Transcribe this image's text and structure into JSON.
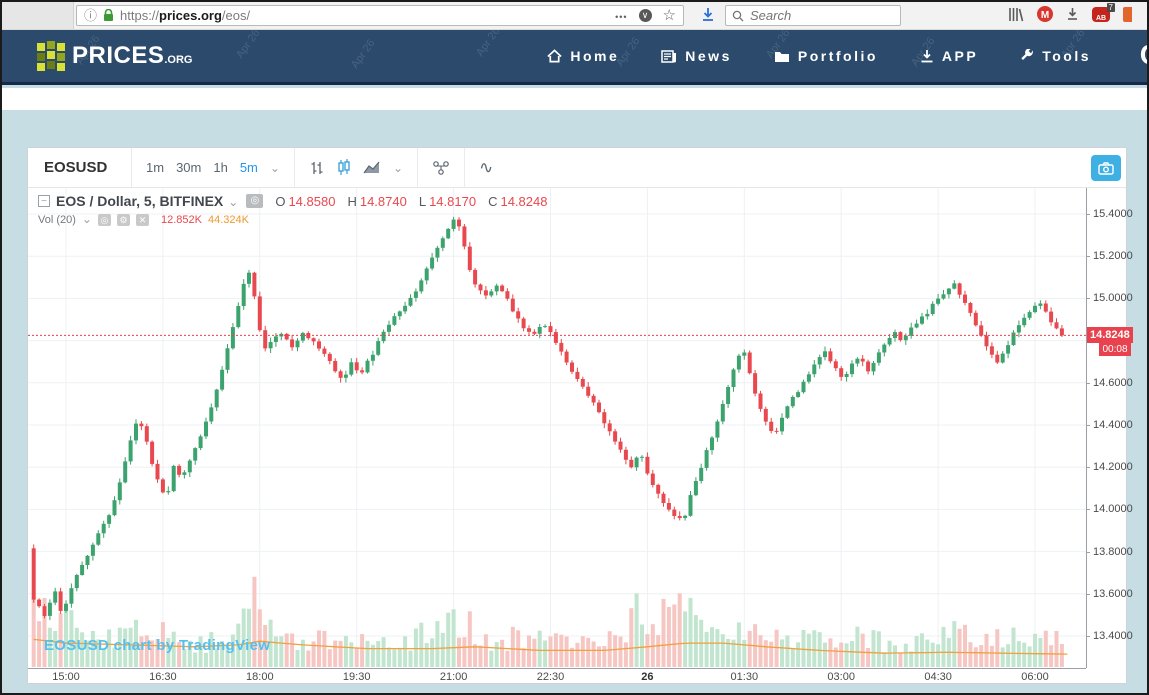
{
  "browser": {
    "url": {
      "scheme": "https://",
      "host": "prices.org",
      "path": "/eos/"
    },
    "search_placeholder": "Search",
    "adblock_badge": "7"
  },
  "navbar": {
    "brand": "PRICES",
    "brand_tld": ".ORG",
    "items": [
      {
        "label": "Home"
      },
      {
        "label": "News"
      },
      {
        "label": "Portfolio"
      },
      {
        "label": "APP"
      },
      {
        "label": "Tools"
      }
    ],
    "partial_right": "C",
    "watermark": "Apr 26"
  },
  "chart_toolbar": {
    "symbol": "EOSUSD",
    "intervals": [
      "1m",
      "30m",
      "1h",
      "5m"
    ],
    "active_interval": "5m"
  },
  "legend": {
    "title": "EOS / Dollar, 5, BITFINEX",
    "ohlc": [
      {
        "k": "O",
        "v": "14.8580"
      },
      {
        "k": "H",
        "v": "14.8740"
      },
      {
        "k": "L",
        "v": "14.8170"
      },
      {
        "k": "C",
        "v": "14.8248"
      }
    ],
    "vol_label": "Vol (20)",
    "vol_value": "12.852K",
    "vol_ma_value": "44.324K"
  },
  "watermark_text": "EOSUSD chart by TradingView",
  "price_axis": {
    "ticks": [
      "15.4000",
      "15.2000",
      "15.0000",
      "14.6000",
      "14.4000",
      "14.2000",
      "14.0000",
      "13.8000",
      "13.6000",
      "13.4000"
    ],
    "last_price": "14.8248",
    "last_price_value": 14.8248,
    "countdown": "00:08"
  },
  "time_axis": {
    "ticks": [
      {
        "label": "15:00"
      },
      {
        "label": "16:30"
      },
      {
        "label": "18:00"
      },
      {
        "label": "19:30"
      },
      {
        "label": "21:00"
      },
      {
        "label": "22:30"
      },
      {
        "label": "26",
        "bold": true
      },
      {
        "label": "01:30"
      },
      {
        "label": "03:00"
      },
      {
        "label": "04:30"
      },
      {
        "label": "06:00"
      }
    ]
  },
  "chart_data": {
    "type": "candlestick",
    "symbol": "EOSUSD",
    "exchange": "BITFINEX",
    "interval_minutes": 5,
    "title": "EOS / Dollar, 5, BITFINEX",
    "last_candle": {
      "open": 14.858,
      "high": 14.874,
      "low": 14.817,
      "close": 14.8248
    },
    "price_range": [
      13.4,
      15.4
    ],
    "session_high": 15.39,
    "session_low": 13.46,
    "grid": true,
    "price_path": [
      [
        -30,
        13.82
      ],
      [
        -25,
        13.58
      ],
      [
        -15,
        13.5
      ],
      [
        -5,
        13.62
      ],
      [
        0,
        13.52
      ],
      [
        5,
        13.56
      ],
      [
        15,
        13.68
      ],
      [
        25,
        13.78
      ],
      [
        35,
        13.88
      ],
      [
        45,
        13.98
      ],
      [
        55,
        14.12
      ],
      [
        65,
        14.32
      ],
      [
        72,
        14.44
      ],
      [
        78,
        14.36
      ],
      [
        85,
        14.22
      ],
      [
        92,
        14.1
      ],
      [
        98,
        14.05
      ],
      [
        105,
        14.2
      ],
      [
        112,
        14.15
      ],
      [
        120,
        14.24
      ],
      [
        130,
        14.34
      ],
      [
        140,
        14.48
      ],
      [
        150,
        14.66
      ],
      [
        158,
        14.82
      ],
      [
        165,
        14.96
      ],
      [
        172,
        15.1
      ],
      [
        176,
        15.13
      ],
      [
        182,
        14.96
      ],
      [
        188,
        14.75
      ],
      [
        195,
        14.8
      ],
      [
        205,
        14.83
      ],
      [
        215,
        14.77
      ],
      [
        225,
        14.84
      ],
      [
        235,
        14.8
      ],
      [
        245,
        14.73
      ],
      [
        255,
        14.66
      ],
      [
        262,
        14.6
      ],
      [
        270,
        14.7
      ],
      [
        278,
        14.64
      ],
      [
        288,
        14.72
      ],
      [
        298,
        14.82
      ],
      [
        308,
        14.9
      ],
      [
        318,
        14.96
      ],
      [
        328,
        15.02
      ],
      [
        338,
        15.12
      ],
      [
        348,
        15.22
      ],
      [
        358,
        15.32
      ],
      [
        365,
        15.37
      ],
      [
        372,
        15.32
      ],
      [
        378,
        15.16
      ],
      [
        385,
        15.06
      ],
      [
        395,
        15.02
      ],
      [
        405,
        15.06
      ],
      [
        412,
        15.02
      ],
      [
        420,
        14.94
      ],
      [
        430,
        14.86
      ],
      [
        440,
        14.84
      ],
      [
        448,
        14.87
      ],
      [
        456,
        14.83
      ],
      [
        464,
        14.76
      ],
      [
        474,
        14.66
      ],
      [
        484,
        14.58
      ],
      [
        494,
        14.52
      ],
      [
        504,
        14.42
      ],
      [
        514,
        14.34
      ],
      [
        522,
        14.26
      ],
      [
        530,
        14.2
      ],
      [
        538,
        14.28
      ],
      [
        546,
        14.15
      ],
      [
        554,
        14.08
      ],
      [
        562,
        14.02
      ],
      [
        570,
        13.97
      ],
      [
        578,
        13.94
      ],
      [
        585,
        14.06
      ],
      [
        594,
        14.18
      ],
      [
        603,
        14.32
      ],
      [
        612,
        14.45
      ],
      [
        620,
        14.58
      ],
      [
        628,
        14.7
      ],
      [
        634,
        14.76
      ],
      [
        640,
        14.64
      ],
      [
        648,
        14.5
      ],
      [
        656,
        14.4
      ],
      [
        664,
        14.36
      ],
      [
        672,
        14.46
      ],
      [
        682,
        14.54
      ],
      [
        692,
        14.62
      ],
      [
        702,
        14.7
      ],
      [
        710,
        14.75
      ],
      [
        718,
        14.68
      ],
      [
        726,
        14.62
      ],
      [
        734,
        14.68
      ],
      [
        742,
        14.72
      ],
      [
        750,
        14.65
      ],
      [
        758,
        14.72
      ],
      [
        766,
        14.78
      ],
      [
        774,
        14.84
      ],
      [
        782,
        14.8
      ],
      [
        790,
        14.86
      ],
      [
        798,
        14.9
      ],
      [
        806,
        14.94
      ],
      [
        815,
        15.0
      ],
      [
        824,
        15.04
      ],
      [
        830,
        15.07
      ],
      [
        838,
        15.0
      ],
      [
        846,
        14.92
      ],
      [
        854,
        14.84
      ],
      [
        862,
        14.76
      ],
      [
        870,
        14.7
      ],
      [
        878,
        14.76
      ],
      [
        886,
        14.84
      ],
      [
        894,
        14.9
      ],
      [
        902,
        14.95
      ],
      [
        910,
        14.98
      ],
      [
        916,
        14.92
      ],
      [
        921,
        14.87
      ],
      [
        925,
        14.858
      ],
      [
        930,
        14.8248
      ]
    ],
    "volume_path": [
      [
        -30,
        0.95
      ],
      [
        -20,
        0.6
      ],
      [
        -10,
        0.45
      ],
      [
        0,
        0.5
      ],
      [
        10,
        0.42
      ],
      [
        20,
        0.38
      ],
      [
        30,
        0.3
      ],
      [
        45,
        0.28
      ],
      [
        60,
        0.4
      ],
      [
        75,
        0.45
      ],
      [
        90,
        0.38
      ],
      [
        105,
        0.25
      ],
      [
        120,
        0.22
      ],
      [
        135,
        0.28
      ],
      [
        150,
        0.4
      ],
      [
        162,
        0.55
      ],
      [
        172,
        0.95
      ],
      [
        180,
        0.7
      ],
      [
        190,
        0.45
      ],
      [
        200,
        0.32
      ],
      [
        215,
        0.28
      ],
      [
        230,
        0.32
      ],
      [
        245,
        0.28
      ],
      [
        260,
        0.32
      ],
      [
        275,
        0.25
      ],
      [
        290,
        0.22
      ],
      [
        305,
        0.28
      ],
      [
        320,
        0.3
      ],
      [
        335,
        0.35
      ],
      [
        350,
        0.42
      ],
      [
        365,
        0.48
      ],
      [
        378,
        0.4
      ],
      [
        392,
        0.3
      ],
      [
        406,
        0.28
      ],
      [
        420,
        0.32
      ],
      [
        435,
        0.28
      ],
      [
        450,
        0.3
      ],
      [
        465,
        0.28
      ],
      [
        480,
        0.32
      ],
      [
        495,
        0.3
      ],
      [
        510,
        0.38
      ],
      [
        524,
        0.52
      ],
      [
        534,
        0.62
      ],
      [
        544,
        0.48
      ],
      [
        554,
        0.55
      ],
      [
        564,
        0.45
      ],
      [
        572,
        0.88
      ],
      [
        580,
        0.6
      ],
      [
        590,
        0.4
      ],
      [
        602,
        0.32
      ],
      [
        614,
        0.38
      ],
      [
        626,
        0.48
      ],
      [
        636,
        0.4
      ],
      [
        648,
        0.35
      ],
      [
        660,
        0.3
      ],
      [
        672,
        0.28
      ],
      [
        686,
        0.3
      ],
      [
        700,
        0.32
      ],
      [
        714,
        0.3
      ],
      [
        728,
        0.34
      ],
      [
        742,
        0.3
      ],
      [
        756,
        0.28
      ],
      [
        770,
        0.26
      ],
      [
        784,
        0.24
      ],
      [
        798,
        0.28
      ],
      [
        812,
        0.34
      ],
      [
        824,
        0.42
      ],
      [
        834,
        0.38
      ],
      [
        846,
        0.32
      ],
      [
        858,
        0.3
      ],
      [
        870,
        0.28
      ],
      [
        882,
        0.3
      ],
      [
        894,
        0.34
      ],
      [
        906,
        0.38
      ],
      [
        918,
        0.34
      ],
      [
        930,
        0.28
      ]
    ],
    "volume_ma_path": [
      [
        -30,
        0.3
      ],
      [
        0,
        0.26
      ],
      [
        60,
        0.24
      ],
      [
        120,
        0.22
      ],
      [
        160,
        0.24
      ],
      [
        180,
        0.28
      ],
      [
        220,
        0.24
      ],
      [
        280,
        0.2
      ],
      [
        340,
        0.2
      ],
      [
        380,
        0.22
      ],
      [
        440,
        0.18
      ],
      [
        500,
        0.18
      ],
      [
        540,
        0.22
      ],
      [
        575,
        0.26
      ],
      [
        610,
        0.26
      ],
      [
        650,
        0.22
      ],
      [
        700,
        0.18
      ],
      [
        760,
        0.15
      ],
      [
        820,
        0.16
      ],
      [
        870,
        0.15
      ],
      [
        930,
        0.14
      ]
    ],
    "colors": {
      "up": "#3ca36e",
      "down": "#e8494f",
      "vol_up": "#c2e5d0",
      "vol_down": "#f6c6c2",
      "volume_ma": "#f0a03c",
      "last_price_line": "#e8424e",
      "grid": "#edf1f4",
      "active_interval": "#2196f3"
    }
  }
}
